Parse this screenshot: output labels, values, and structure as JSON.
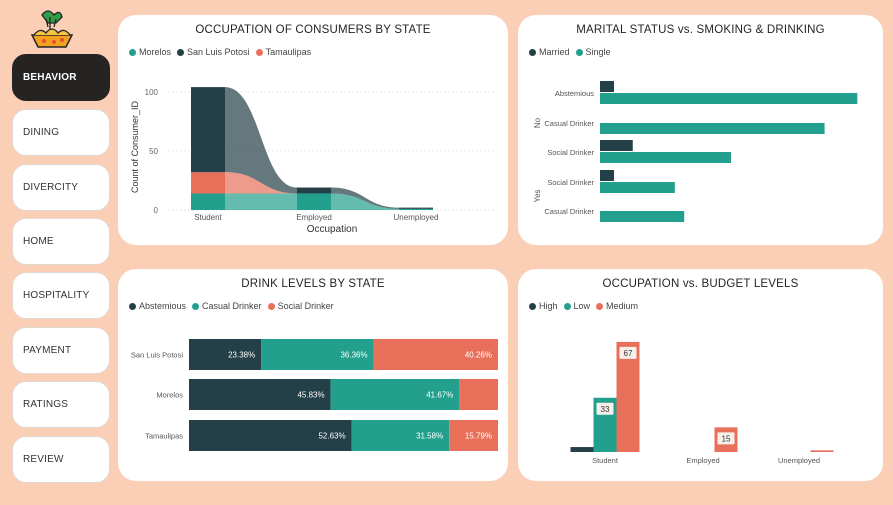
{
  "colors": {
    "dark": "#233f47",
    "teal": "#22a08d",
    "orange": "#e8705a"
  },
  "nav": [
    {
      "label": "BEHAVIOR",
      "active": true
    },
    {
      "label": "DINING"
    },
    {
      "label": "DIVERCITY"
    },
    {
      "label": "HOME"
    },
    {
      "label": "HOSPITALITY"
    },
    {
      "label": "PAYMENT"
    },
    {
      "label": "RATINGS"
    },
    {
      "label": "REVIEW"
    }
  ],
  "chart_data": [
    {
      "type": "area",
      "title": "OCCUPATION OF CONSUMERS BY STATE",
      "legend": [
        "Morelos",
        "San Luis Potosi",
        "Tamaulipas"
      ],
      "xlabel": "Occupation",
      "ylabel": "Count of Consumer_ID",
      "categories": [
        "Student",
        "Employed",
        "Unemployed"
      ],
      "yticks": [
        "0",
        "50",
        "100"
      ],
      "ylim": [
        0,
        110
      ],
      "series": [
        {
          "name": "Morelos",
          "values": [
            14,
            14,
            1
          ]
        },
        {
          "name": "San Luis Potosi",
          "values": [
            72,
            5,
            1
          ]
        },
        {
          "name": "Tamaulipas",
          "values": [
            18,
            0,
            0
          ]
        }
      ]
    },
    {
      "type": "bar",
      "title": "MARITAL STATUS vs. SMOKING & DRINKING",
      "legend": [
        "Married",
        "Single"
      ],
      "groups": [
        "No",
        "Yes"
      ],
      "categories": [
        "Abstemious",
        "Casual Drinker",
        "Social Drinker",
        "Social Drinker",
        "Casual Drinker"
      ],
      "series": [
        {
          "name": "Married",
          "values": [
            3,
            0,
            7,
            3,
            0
          ]
        },
        {
          "name": "Single",
          "values": [
            55,
            48,
            28,
            16,
            18
          ]
        }
      ],
      "xlim": [
        0,
        56
      ]
    },
    {
      "type": "bar",
      "title": "DRINK LEVELS BY STATE",
      "legend": [
        "Abstemious",
        "Casual Drinker",
        "Social Drinker"
      ],
      "categories": [
        "San Luis Potosi",
        "Morelos",
        "Tamaulipas"
      ],
      "series": [
        {
          "name": "Abstemious",
          "values": [
            23.38,
            45.83,
            52.63
          ],
          "labels": [
            "23.38%",
            "45.83%",
            "52.63%"
          ]
        },
        {
          "name": "Casual Drinker",
          "values": [
            36.36,
            41.67,
            31.58
          ],
          "labels": [
            "36.36%",
            "41.67%",
            "31.58%"
          ]
        },
        {
          "name": "Social Drinker",
          "values": [
            40.26,
            12.5,
            15.79
          ],
          "labels": [
            "40.26%",
            "",
            "15.79%"
          ]
        }
      ]
    },
    {
      "type": "bar",
      "title": "OCCUPATION vs. BUDGET LEVELS",
      "legend": [
        "High",
        "Low",
        "Medium"
      ],
      "categories": [
        "Student",
        "Employed",
        "Unemployed"
      ],
      "series": [
        {
          "name": "High",
          "values": [
            3,
            0,
            0
          ],
          "labels": [
            "",
            "",
            ""
          ]
        },
        {
          "name": "Low",
          "values": [
            33,
            0,
            0
          ],
          "labels": [
            "33",
            "",
            ""
          ]
        },
        {
          "name": "Medium",
          "values": [
            67,
            15,
            1
          ],
          "labels": [
            "67",
            "15",
            ""
          ]
        }
      ],
      "ylim": [
        0,
        70
      ]
    }
  ]
}
